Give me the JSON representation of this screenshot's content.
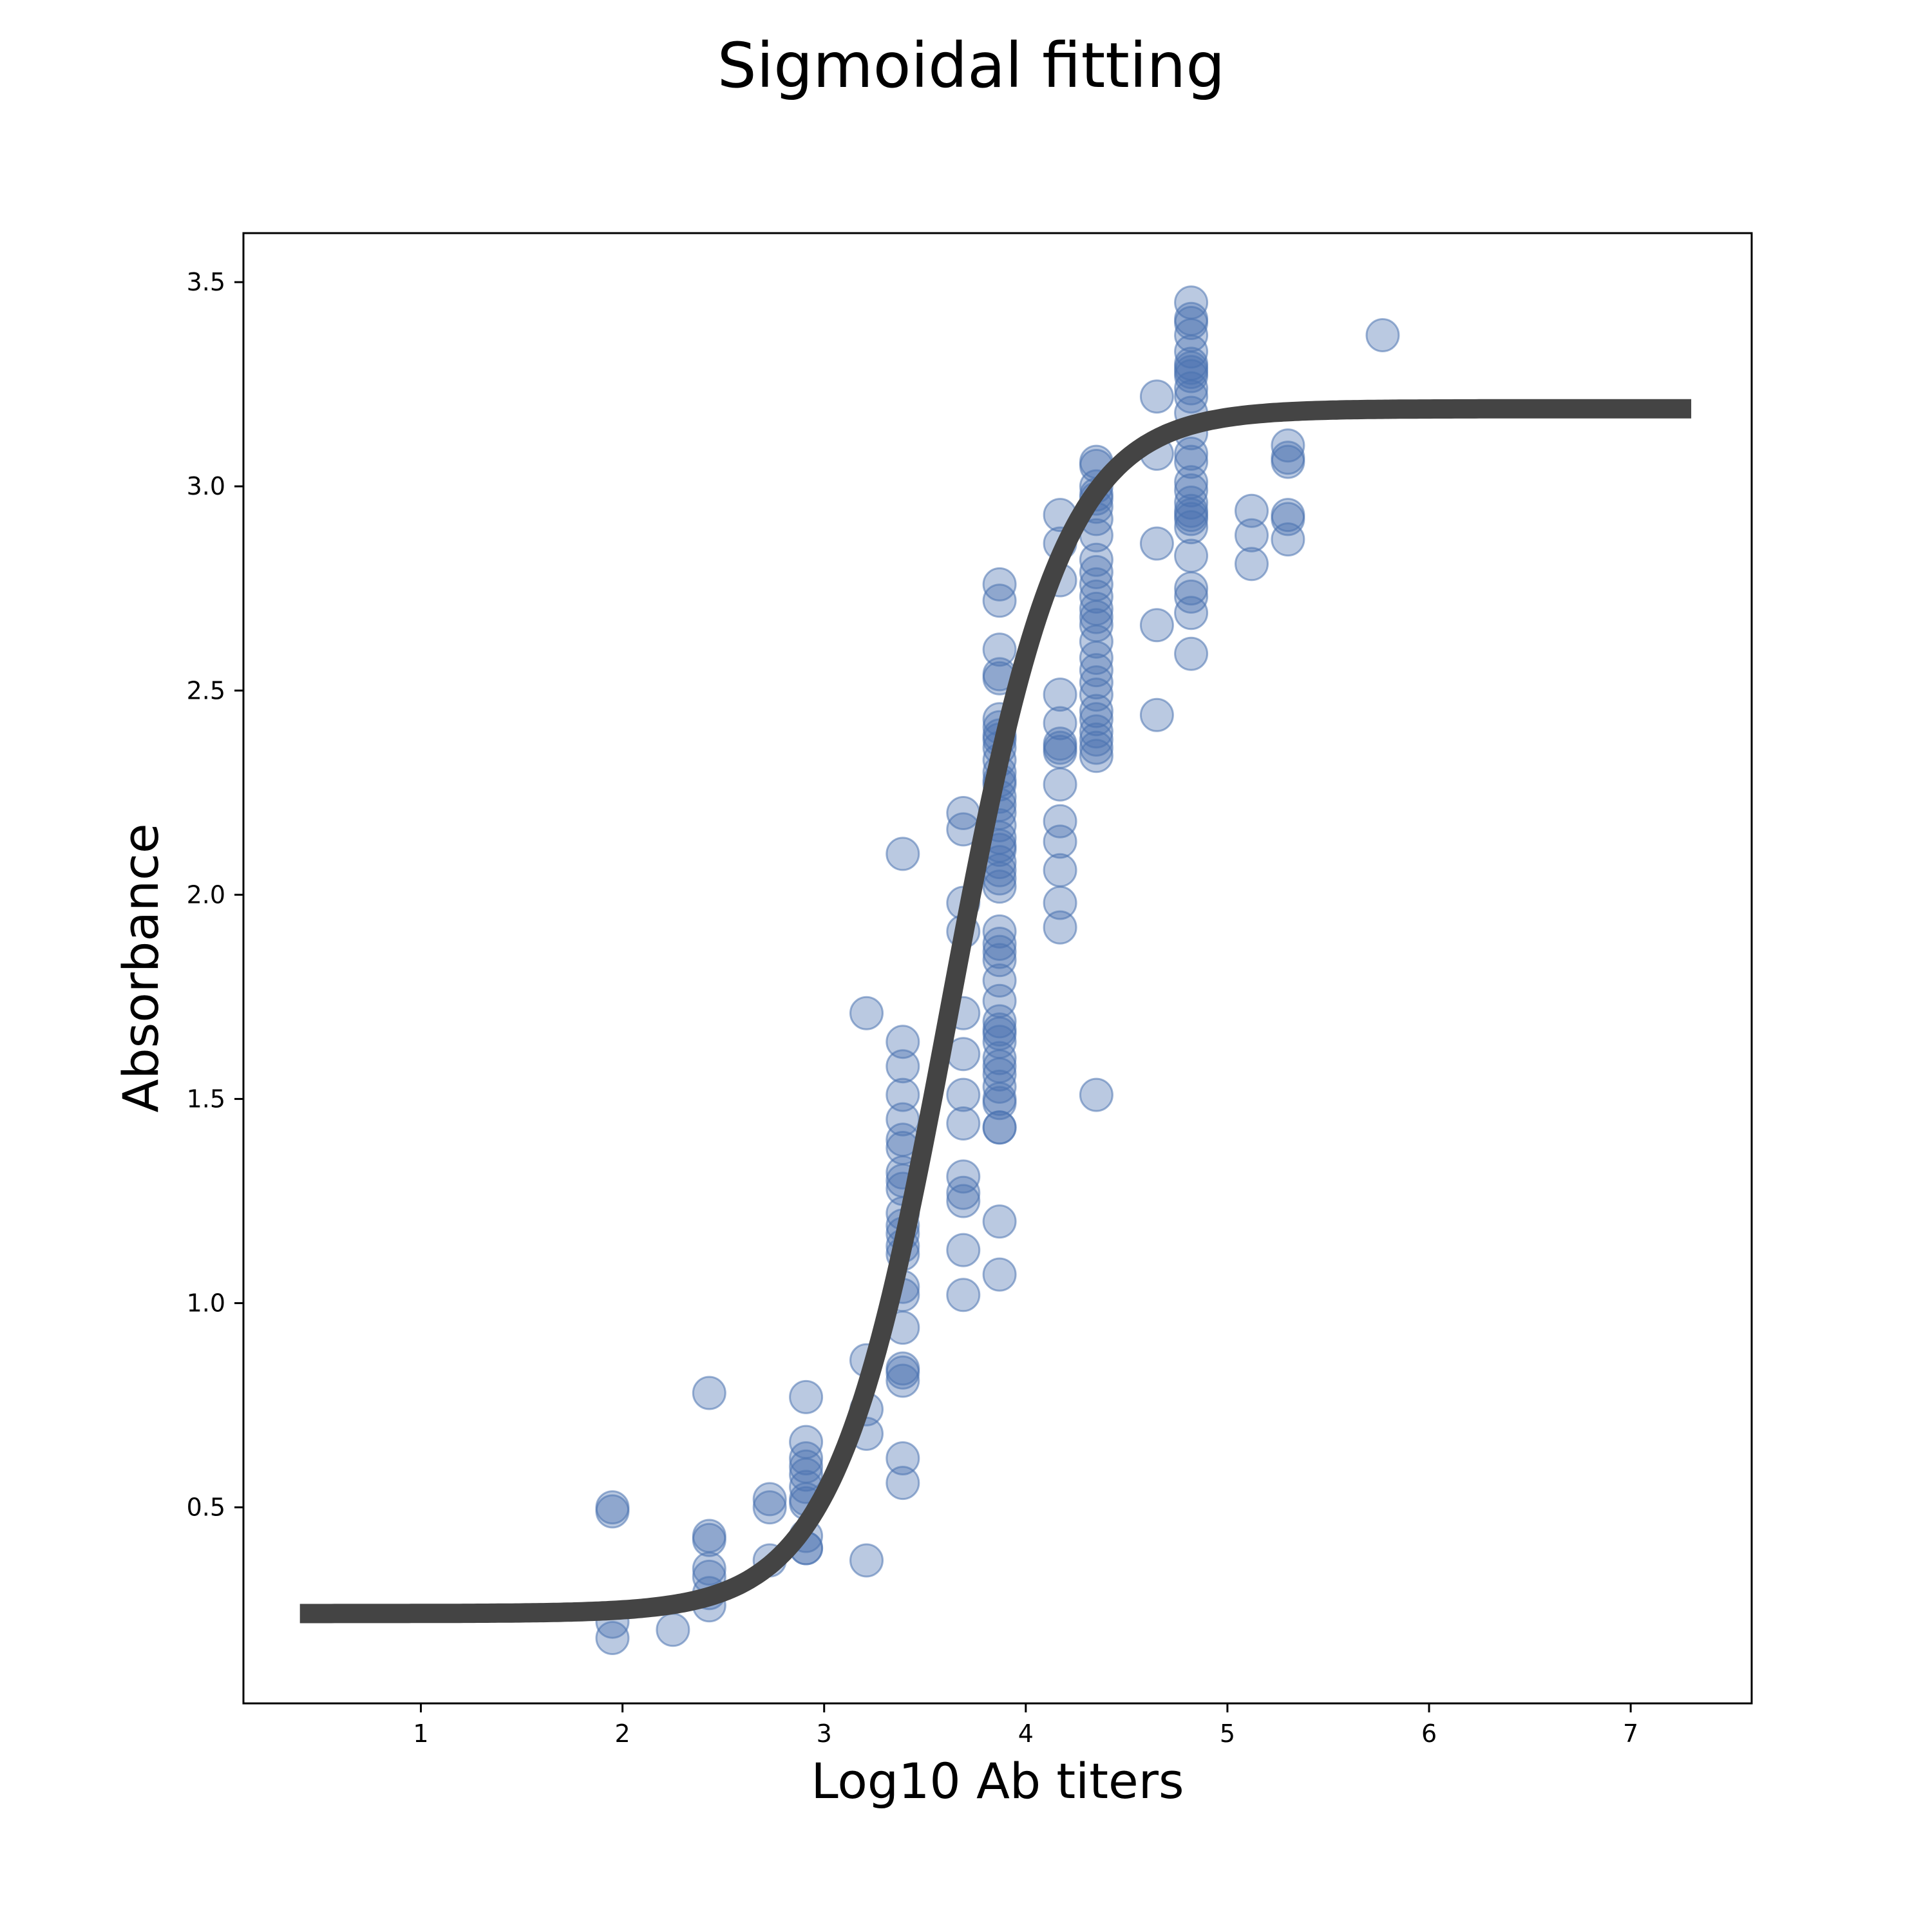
{
  "chart_data": {
    "type": "scatter",
    "title": "Sigmoidal fitting",
    "xlabel": "Log10 Ab titers",
    "ylabel": "Absorbance",
    "xlim": [
      0.12,
      7.6
    ],
    "ylim": [
      0.02,
      3.62
    ],
    "xticks": [
      1,
      2,
      3,
      4,
      5,
      6,
      7
    ],
    "yticks": [
      0.5,
      1.0,
      1.5,
      2.0,
      2.5,
      3.0,
      3.5
    ],
    "xtick_labels": [
      "1",
      "2",
      "3",
      "4",
      "5",
      "6",
      "7"
    ],
    "ytick_labels": [
      "0.5",
      "1.0",
      "1.5",
      "2.0",
      "2.5",
      "3.0",
      "3.5"
    ],
    "grid": false,
    "legend": "none",
    "colors": {
      "points": "#4a72b0",
      "curve": "#444444"
    },
    "series": [
      {
        "type": "scatter",
        "x": [
          1.95,
          1.95,
          1.95,
          1.95,
          2.25,
          2.43,
          2.43,
          2.43,
          2.43,
          2.43,
          2.43,
          2.43,
          2.73,
          2.73,
          2.73,
          2.91,
          2.91,
          2.91,
          2.91,
          2.91,
          2.91,
          2.91,
          2.91,
          2.91,
          2.91,
          2.91,
          3.21,
          3.21,
          3.21,
          3.21,
          3.21,
          3.39,
          3.39,
          3.39,
          3.39,
          3.39,
          3.39,
          3.39,
          3.39,
          3.39,
          3.39,
          3.39,
          3.39,
          3.39,
          3.39,
          3.39,
          3.39,
          3.39,
          3.39,
          3.39,
          3.39,
          3.39,
          3.39,
          3.39,
          3.69,
          3.69,
          3.69,
          3.69,
          3.69,
          3.69,
          3.69,
          3.69,
          3.69,
          3.69,
          3.69,
          3.69,
          3.69,
          3.87,
          3.87,
          3.87,
          3.87,
          3.87,
          3.87,
          3.87,
          3.87,
          3.87,
          3.87,
          3.87,
          3.87,
          3.87,
          3.87,
          3.87,
          3.87,
          3.87,
          3.87,
          3.87,
          3.87,
          3.87,
          3.87,
          3.87,
          3.87,
          3.87,
          3.87,
          3.87,
          3.87,
          3.87,
          3.87,
          3.87,
          3.87,
          3.87,
          3.87,
          3.87,
          3.87,
          3.87,
          3.87,
          3.87,
          3.87,
          3.87,
          3.87,
          3.87,
          3.87,
          3.87,
          4.17,
          4.17,
          4.17,
          4.17,
          4.17,
          4.17,
          4.17,
          4.17,
          4.17,
          4.17,
          4.17,
          4.17,
          4.17,
          4.17,
          4.35,
          4.35,
          4.35,
          4.35,
          4.35,
          4.35,
          4.35,
          4.35,
          4.35,
          4.35,
          4.35,
          4.35,
          4.35,
          4.35,
          4.35,
          4.35,
          4.35,
          4.35,
          4.35,
          4.35,
          4.35,
          4.35,
          4.35,
          4.35,
          4.35,
          4.35,
          4.35,
          4.65,
          4.65,
          4.65,
          4.65,
          4.65,
          4.82,
          4.82,
          4.82,
          4.82,
          4.82,
          4.82,
          4.82,
          4.82,
          4.82,
          4.82,
          4.82,
          4.82,
          4.82,
          4.82,
          4.82,
          4.82,
          4.82,
          4.82,
          4.82,
          4.82,
          4.82,
          4.82,
          4.82,
          4.82,
          4.82,
          4.82,
          4.82,
          5.12,
          5.12,
          5.12,
          5.3,
          5.3,
          5.3,
          5.3,
          5.3,
          5.3,
          5.77
        ],
        "y": [
          0.5,
          0.49,
          0.22,
          0.18,
          0.2,
          0.78,
          0.42,
          0.43,
          0.35,
          0.33,
          0.29,
          0.26,
          0.52,
          0.5,
          0.37,
          0.77,
          0.66,
          0.62,
          0.6,
          0.58,
          0.55,
          0.51,
          0.52,
          0.43,
          0.4,
          0.4,
          1.71,
          0.86,
          0.74,
          0.68,
          0.37,
          2.1,
          1.64,
          1.58,
          1.51,
          1.45,
          1.4,
          1.38,
          1.32,
          1.3,
          1.28,
          1.22,
          1.19,
          1.17,
          1.14,
          1.12,
          1.04,
          1.02,
          0.94,
          0.84,
          0.83,
          0.81,
          0.62,
          0.56,
          2.2,
          2.16,
          1.98,
          1.91,
          1.71,
          1.61,
          1.51,
          1.44,
          1.31,
          1.27,
          1.25,
          1.13,
          1.02,
          2.76,
          2.72,
          2.6,
          2.54,
          2.53,
          2.43,
          2.41,
          2.39,
          2.36,
          2.33,
          2.3,
          2.27,
          2.24,
          2.22,
          2.2,
          2.17,
          2.14,
          2.11,
          2.08,
          2.06,
          2.04,
          2.02,
          1.91,
          1.88,
          1.86,
          1.84,
          1.79,
          1.74,
          1.69,
          1.66,
          1.64,
          1.6,
          1.58,
          1.56,
          1.53,
          1.5,
          1.49,
          1.43,
          1.43,
          1.2,
          1.07,
          2.12,
          2.28,
          2.38,
          1.67,
          2.93,
          2.86,
          2.77,
          2.49,
          2.42,
          2.37,
          2.35,
          2.27,
          2.18,
          2.13,
          2.06,
          1.98,
          1.92,
          2.36,
          3.06,
          3.05,
          3.0,
          2.97,
          2.95,
          2.92,
          2.88,
          2.82,
          2.79,
          2.76,
          2.73,
          2.7,
          2.68,
          2.66,
          2.62,
          2.58,
          2.55,
          2.52,
          2.49,
          2.45,
          2.43,
          2.4,
          2.38,
          2.36,
          2.34,
          1.51,
          2.98,
          3.22,
          3.08,
          2.86,
          2.66,
          2.44,
          3.45,
          3.41,
          3.4,
          3.37,
          3.33,
          3.3,
          3.28,
          3.27,
          3.24,
          3.22,
          3.18,
          3.13,
          3.08,
          3.06,
          3.01,
          2.99,
          2.96,
          2.94,
          2.92,
          2.9,
          2.83,
          2.75,
          2.73,
          2.69,
          2.59,
          3.29,
          2.93,
          2.94,
          2.88,
          2.81,
          3.1,
          3.07,
          3.06,
          2.93,
          2.92,
          2.87,
          3.37
        ]
      },
      {
        "type": "line",
        "curve_type": "four-parameter logistic",
        "bottom": 0.24,
        "top": 3.19,
        "inflection_x": 3.62,
        "hill_slope": 1.55,
        "x_range": [
          0.4,
          7.3
        ]
      }
    ]
  }
}
